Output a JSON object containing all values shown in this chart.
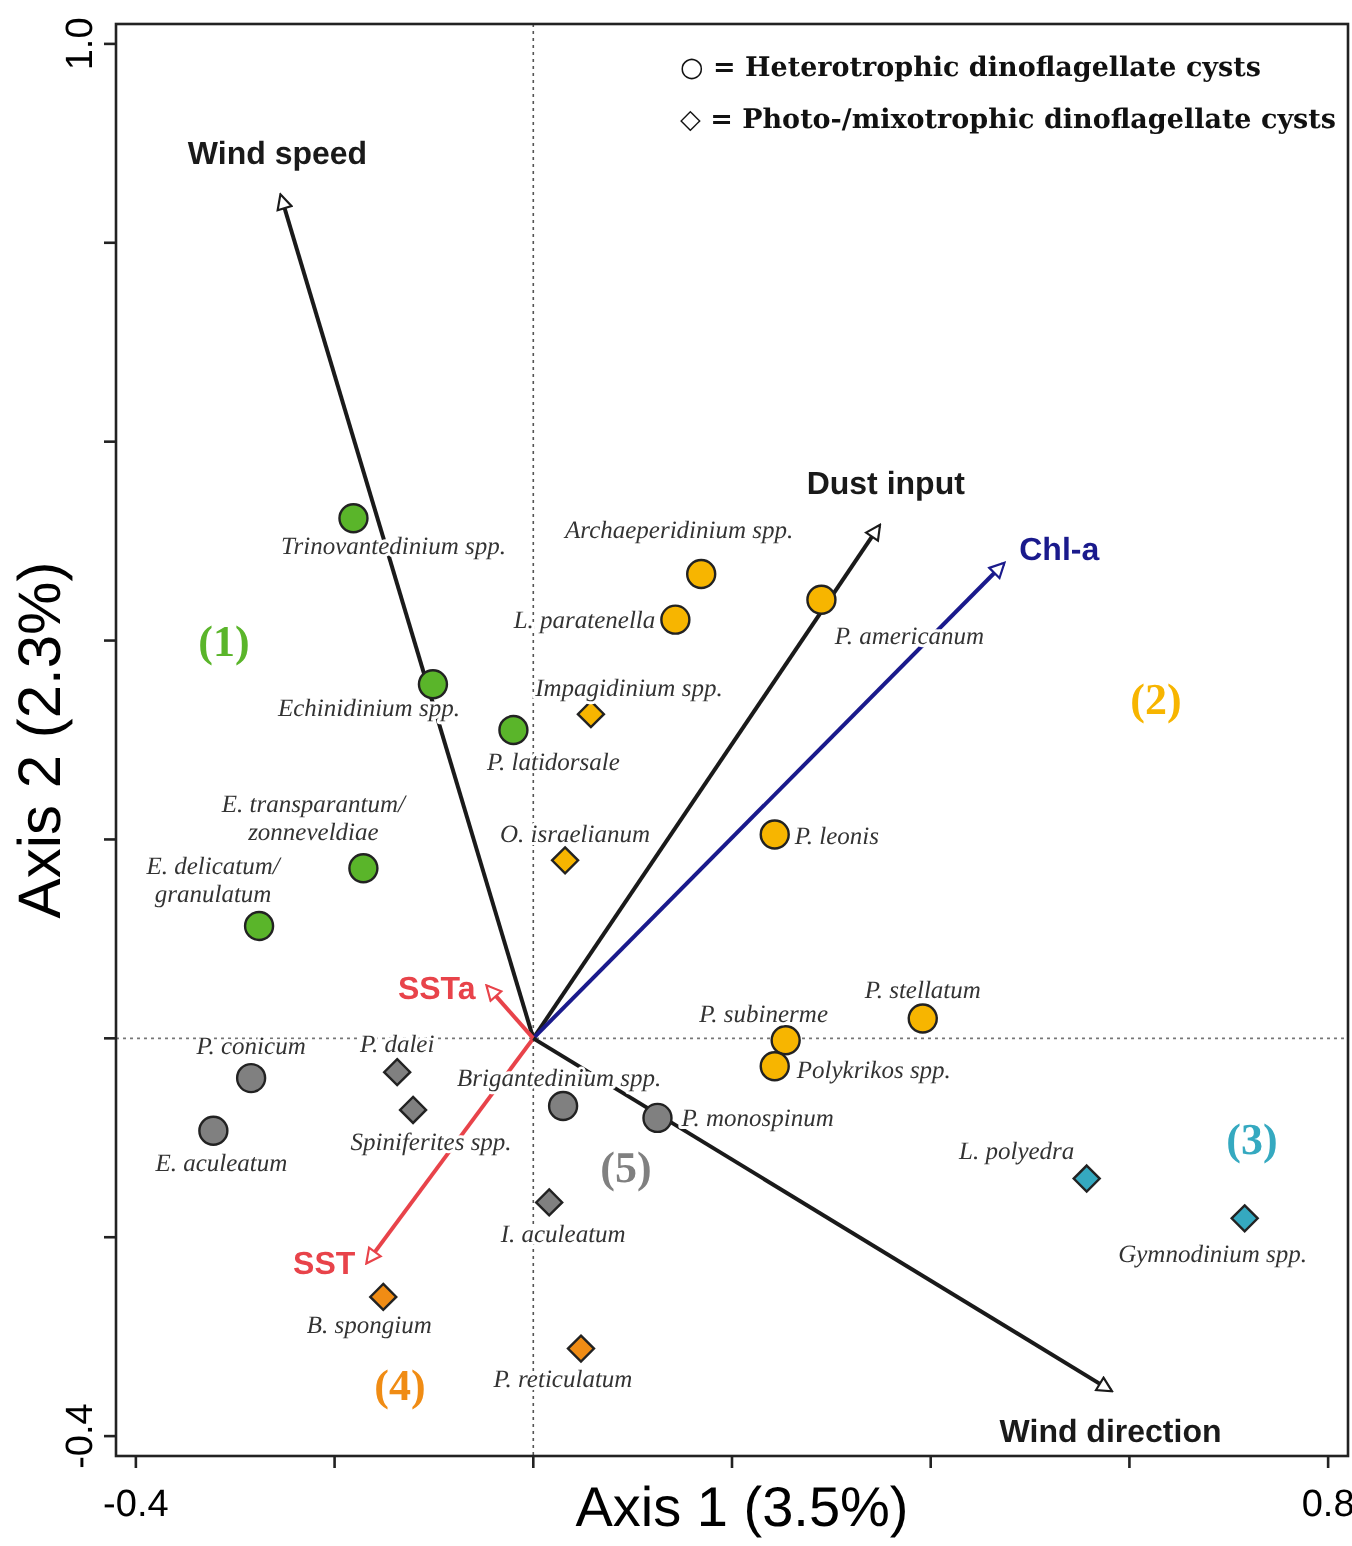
{
  "chart_data": {
    "type": "scatter",
    "xlabel": "Axis 1 (3.5%)",
    "ylabel": "Axis 2 (2.3%)",
    "xlim": [
      -0.42,
      0.82
    ],
    "ylim": [
      -0.42,
      1.02
    ],
    "xticks": [
      -0.4,
      {
        "value": -0.2,
        "label": null
      },
      {
        "value": 0,
        "label": null
      },
      {
        "value": 0.2,
        "label": null
      },
      {
        "value": 0.4,
        "label": null
      },
      {
        "value": 0.6,
        "label": null
      },
      0.8
    ],
    "yticks": [
      {
        "value": -0.4,
        "label": "-0.4"
      },
      {
        "value": -0.2,
        "label": null
      },
      {
        "value": 0,
        "label": null
      },
      {
        "value": 0.2,
        "label": null
      },
      {
        "value": 0.4,
        "label": null
      },
      {
        "value": 0.6,
        "label": null
      },
      {
        "value": 0.8,
        "label": null
      },
      {
        "value": 1.0,
        "label": "1.0"
      }
    ],
    "grid": false,
    "ref_lines": [
      {
        "axis": "x",
        "value": 0,
        "line_style": "dotted",
        "color": "#555555"
      },
      {
        "axis": "y",
        "value": 0,
        "line_style": "dotted",
        "color": "#777777"
      }
    ],
    "annotations": [
      "○ = Heterotrophic dinoflagellate cysts",
      "◇ = Photo-/mixotrophic dinoflagellate cysts"
    ],
    "series": [
      {
        "name": "(1)",
        "marker": "circle",
        "color": "#5ab52a",
        "x": [
          -0.181,
          -0.101,
          -0.02,
          -0.171,
          -0.276
        ],
        "values": [
          0.523,
          0.356,
          0.31,
          0.171,
          0.113
        ],
        "value_labels": [
          "Trinovantedinium spp.",
          "Echinidinium spp.",
          "P. latidorsale",
          "E. transparantum/ zonneveldiae",
          "E. delicatum/ granulatum"
        ]
      },
      {
        "name": "(2)",
        "marker": "circle",
        "color": "#f7b500",
        "x": [
          0.169,
          0.143,
          0.29,
          0.243,
          0.392,
          0.254,
          0.243
        ],
        "values": [
          0.467,
          0.421,
          0.441,
          0.205,
          0.02,
          -0.002,
          -0.028
        ],
        "value_labels": [
          "Archaeperidinium spp.",
          "L. paratenella",
          "P. americanum",
          "P. leonis",
          "P. stellatum",
          "P. subinerme",
          "Polykrikos spp."
        ]
      },
      {
        "marker": "diamond",
        "color": "#f7b500",
        "x": [
          0.058,
          0.032
        ],
        "values": [
          0.326,
          0.179
        ],
        "value_labels": [
          "Impagidinium spp.",
          "O. israelianum"
        ]
      },
      {
        "name": "(3)",
        "marker": "diamond",
        "color": "#35a9c0",
        "x": [
          0.557,
          0.716
        ],
        "values": [
          -0.141,
          -0.181
        ],
        "value_labels": [
          "L. polyedra",
          "Gymnodinium spp."
        ]
      },
      {
        "name": "(4)",
        "marker": "diamond",
        "color": "#f08c14",
        "x": [
          -0.151,
          0.048
        ],
        "values": [
          -0.26,
          -0.312
        ],
        "value_labels": [
          "B. spongium",
          "P. reticulatum"
        ]
      },
      {
        "name": "(5)",
        "marker": "circle",
        "color": "#808080",
        "x": [
          -0.284,
          -0.322,
          0.03,
          0.125
        ],
        "values": [
          -0.04,
          -0.093,
          -0.068,
          -0.08
        ],
        "value_labels": [
          "P. conicum",
          "E. aculeatum",
          "Brigantedinium spp.",
          "P. monospinum"
        ]
      },
      {
        "marker": "diamond",
        "color": "#808080",
        "x": [
          -0.137,
          -0.121,
          0.016
        ],
        "values": [
          -0.034,
          -0.072,
          -0.165
        ],
        "value_labels": [
          "P. dalei",
          "Spiniferites spp.",
          "I. aculeatum"
        ]
      },
      {
        "type": "line",
        "name": "Wind speed",
        "color": "#1a1a1a",
        "x": [
          0,
          -0.254
        ],
        "values": [
          0,
          0.847
        ]
      },
      {
        "type": "line",
        "name": "Dust input",
        "color": "#1a1a1a",
        "x": [
          0,
          0.348
        ],
        "values": [
          0,
          0.515
        ]
      },
      {
        "type": "line",
        "name": "Chl-a",
        "color": "#1a1a8c",
        "x": [
          0,
          0.473
        ],
        "values": [
          0,
          0.477
        ]
      },
      {
        "type": "line",
        "name": "SSTa",
        "color": "#e8434a",
        "x": [
          0,
          -0.046
        ],
        "values": [
          0,
          0.052
        ]
      },
      {
        "type": "line",
        "name": "SST",
        "color": "#e8434a",
        "x": [
          0,
          -0.167
        ],
        "values": [
          0,
          -0.225
        ]
      },
      {
        "type": "line",
        "name": "Wind direction",
        "color": "#1a1a1a",
        "x": [
          0,
          0.581
        ],
        "values": [
          0,
          -0.354
        ]
      }
    ]
  }
}
